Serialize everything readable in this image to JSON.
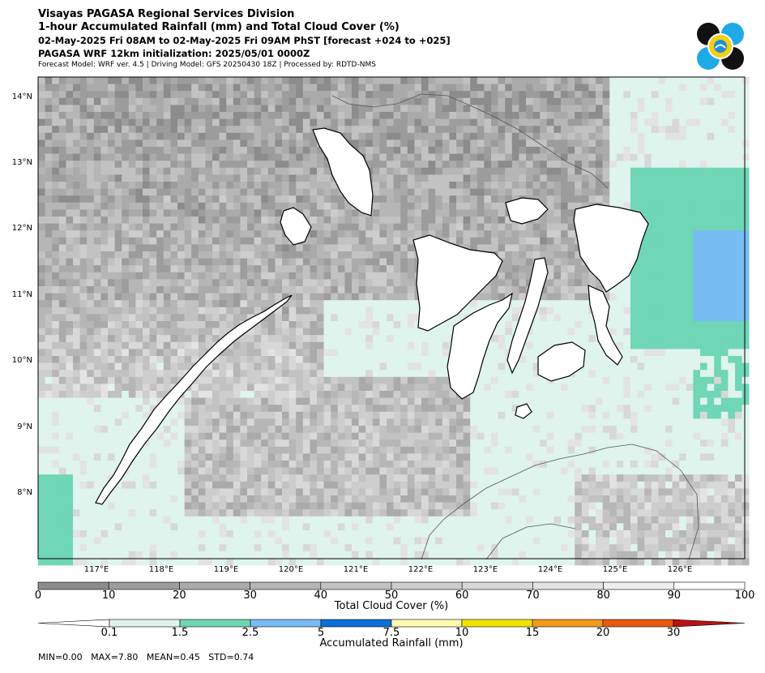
{
  "header": {
    "title": "Visayas PAGASA Regional Services Division",
    "subtitle": "1-hour Accumulated Rainfall (mm) and Total Cloud Cover (%)",
    "valid_time": "02-May-2025 Fri 08AM to 02-May-2025 Fri 09AM PhST [forecast +024 to +025]",
    "initialization": "PAGASA WRF 12km initialization: 2025/05/01 0000Z",
    "model_info": "Forecast Model: WRF ver. 4.5 | Driving Model: GFS 20250430 18Z | Processed by: RDTD-NMS"
  },
  "map": {
    "lat_labels": [
      "14°N",
      "13°N",
      "12°N",
      "11°N",
      "10°N",
      "9°N",
      "8°N"
    ],
    "lon_labels": [
      "117°E",
      "118°E",
      "119°E",
      "120°E",
      "121°E",
      "122°E",
      "123°E",
      "124°E",
      "125°E",
      "126°E"
    ],
    "colors": {
      "sea": "#dff4ec",
      "land": "#ffffff",
      "coast": "#000000"
    }
  },
  "cloud_colorbar": {
    "title": "Total Cloud Cover (%)",
    "ticks": [
      "0",
      "10",
      "20",
      "30",
      "40",
      "50",
      "60",
      "70",
      "80",
      "90",
      "100"
    ],
    "colors": [
      "#8c8c8c",
      "#9c9c9c",
      "#aaaaaa",
      "#b6b6b6",
      "#c2c2c2",
      "#cdcdcd",
      "#d8d8d8",
      "#e3e3e3",
      "#eeeeee",
      "#ffffff"
    ]
  },
  "rain_colorbar": {
    "title": "Accumulated Rainfall (mm)",
    "ticks": [
      "0.1",
      "1.5",
      "2.5",
      "5",
      "7.5",
      "10",
      "15",
      "20",
      "30"
    ],
    "colors": [
      "#ffffff",
      "#dff4ec",
      "#6fd6b6",
      "#78bcf4",
      "#0a6fd6",
      "#fffbb2",
      "#f2e200",
      "#f29a1a",
      "#e75a10",
      "#bb1111"
    ]
  },
  "stats": {
    "text": "MIN=0.00   MAX=7.80   MEAN=0.45   STD=0.74"
  }
}
